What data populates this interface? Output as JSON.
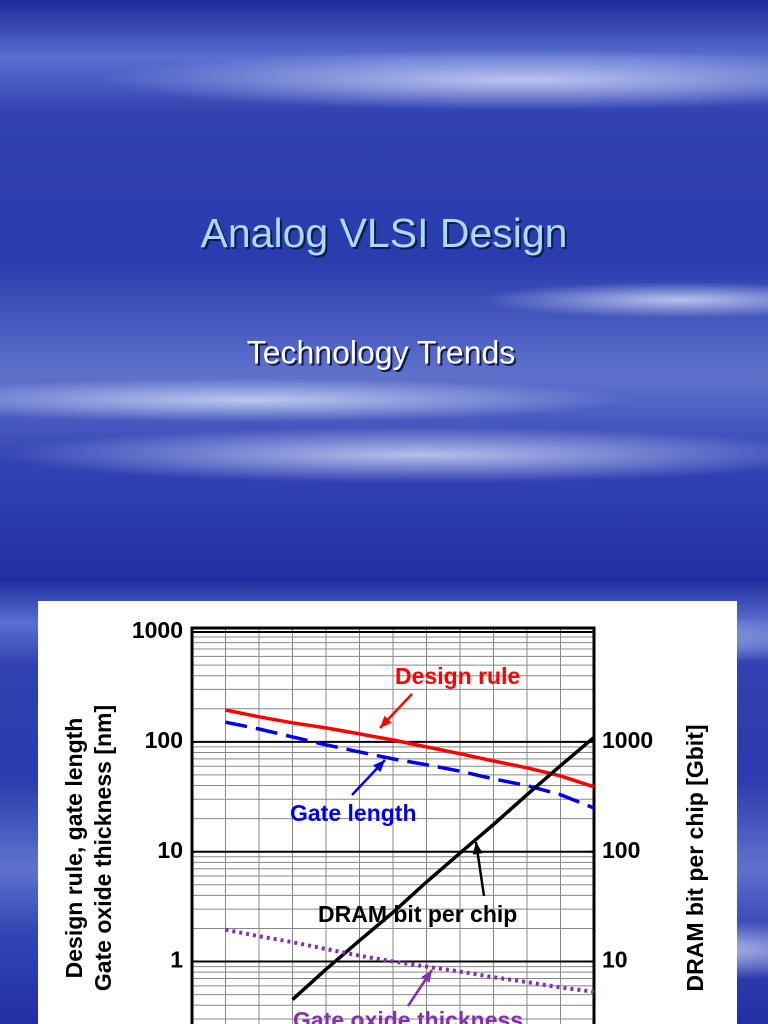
{
  "slide": {
    "title": "Analog VLSI Design",
    "subtitle": "Technology Trends"
  },
  "chart_data": {
    "type": "line",
    "y_label": [
      "Design rule, gate length",
      "Gate oxide thickness [nm]"
    ],
    "y2_label": "DRAM bit per chip [Gbit]",
    "categories": [
      null,
      null,
      null,
      null,
      null,
      null,
      null,
      null,
      null,
      null,
      null,
      null,
      null
    ],
    "series": [
      {
        "name": "Design rule",
        "color": "#ff0000",
        "dash": "solid",
        "values": [
          null,
          195,
          169,
          149,
          134,
          118,
          104,
          90,
          78,
          67,
          58,
          49,
          39
        ]
      },
      {
        "name": "Gate length",
        "color": "#0000ee",
        "dash": "dashed",
        "values": [
          null,
          151,
          131,
          111,
          94,
          81,
          70,
          62,
          54,
          46,
          40,
          33,
          25
        ]
      },
      {
        "name": "DRAM bit per chip",
        "color": "#000000",
        "dash": "solid",
        "axis": "y2",
        "values": [
          null,
          null,
          null,
          4.5,
          8.5,
          15.5,
          28,
          53,
          97,
          177,
          330,
          607,
          1100
        ]
      },
      {
        "name": "Gate oxide thickness",
        "color": "#8030b0",
        "dash": "dotted",
        "values": [
          null,
          1.95,
          1.7,
          1.5,
          1.3,
          1.13,
          1.0,
          0.9,
          0.81,
          0.72,
          0.65,
          0.58,
          0.53
        ]
      }
    ],
    "log_scale": true,
    "ylim": [
      0.27,
      1000
    ],
    "yticks": [
      1,
      10,
      100,
      1000
    ],
    "yminorticks": [
      0.3,
      0.4,
      0.5,
      0.6,
      0.7,
      0.8,
      0.9,
      2,
      3,
      4,
      5,
      6,
      7,
      8,
      9,
      20,
      30,
      40,
      50,
      60,
      70,
      80,
      90,
      200,
      300,
      400,
      500,
      600,
      700,
      800,
      900
    ],
    "y2lim": [
      2.7,
      10000
    ],
    "y2ticks": [
      10,
      100,
      1000
    ],
    "grid": true
  }
}
